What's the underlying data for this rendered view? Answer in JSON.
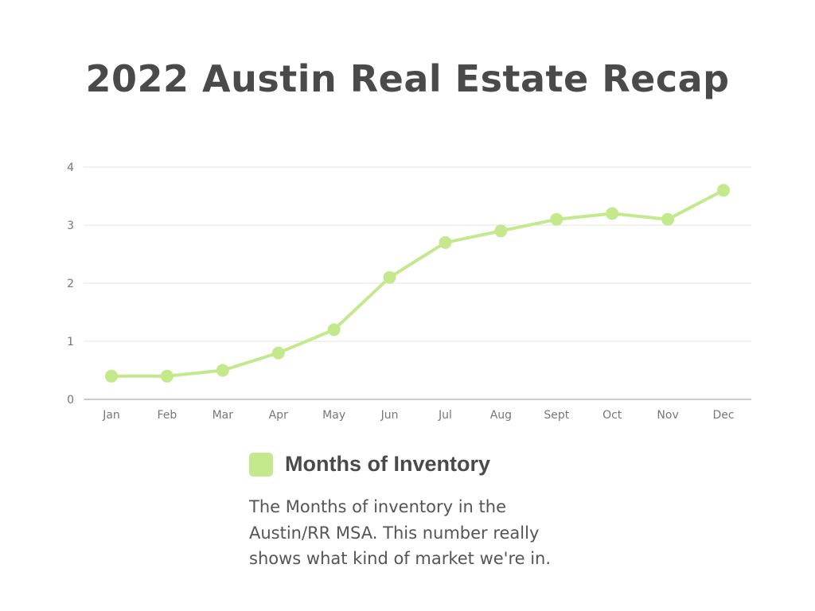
{
  "title": "2022 Austin Real Estate Recap",
  "legend": {
    "label": "Months of Inventory",
    "color": "#c3e98c"
  },
  "description": "The Months of inventory in the Austin/RR MSA. This number really shows what kind of market we're in.",
  "chart_data": {
    "type": "line",
    "categories": [
      "Jan",
      "Feb",
      "Mar",
      "Apr",
      "May",
      "Jun",
      "Jul",
      "Aug",
      "Sept",
      "Oct",
      "Nov",
      "Dec"
    ],
    "series": [
      {
        "name": "Months of Inventory",
        "values": [
          0.4,
          0.4,
          0.5,
          0.8,
          1.2,
          2.1,
          2.7,
          2.9,
          3.1,
          3.2,
          3.1,
          3.6
        ],
        "color": "#c3e98c"
      }
    ],
    "yticks": [
      0,
      1,
      2,
      3,
      4
    ],
    "ylim": [
      0,
      4
    ],
    "grid": true,
    "legend_position": "bottom"
  }
}
